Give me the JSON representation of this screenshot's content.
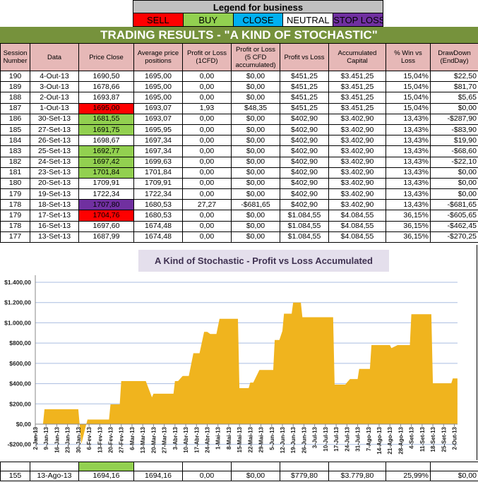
{
  "legend": {
    "title": "Legend for business",
    "items": [
      {
        "label": "SELL",
        "bg": "#ff0000",
        "color": "#000"
      },
      {
        "label": "BUY",
        "bg": "#92d050",
        "color": "#000"
      },
      {
        "label": "CLOSE",
        "bg": "#00b0f0",
        "color": "#000"
      },
      {
        "label": "NEUTRAL",
        "bg": "#ffffff",
        "color": "#000"
      },
      {
        "label": "STOP LOSS",
        "bg": "#7030a0",
        "color": "#000"
      }
    ]
  },
  "title": "TRADING RESULTS - \"A KIND OF STOCHASTIC\"",
  "table": {
    "headers": [
      "Session Number",
      "Data",
      "Price Close",
      "Average price positions",
      "Profit or Loss (1CFD)",
      "Profit or Loss (5 CFD accumulated)",
      "Profit vs Loss",
      "Accumulated Capital",
      "% Win vs Loss",
      "DrawDown (EndDay)"
    ],
    "rows": [
      {
        "cells": [
          "190",
          "4-Out-13",
          "1690,50",
          "1695,00",
          "0,00",
          "$0,00",
          "$451,25",
          "$3.451,25",
          "15,04%",
          "$22,50"
        ],
        "price_color": ""
      },
      {
        "cells": [
          "189",
          "3-Out-13",
          "1678,66",
          "1695,00",
          "0,00",
          "$0,00",
          "$451,25",
          "$3.451,25",
          "15,04%",
          "$81,70"
        ],
        "price_color": ""
      },
      {
        "cells": [
          "188",
          "2-Out-13",
          "1693,87",
          "1695,00",
          "0,00",
          "$0,00",
          "$451,25",
          "$3.451,25",
          "15,04%",
          "$5,65"
        ],
        "price_color": ""
      },
      {
        "cells": [
          "187",
          "1-Out-13",
          "1695,00",
          "1693,07",
          "1,93",
          "$48,35",
          "$451,25",
          "$3.451,25",
          "15,04%",
          "$0,00"
        ],
        "price_color": "#ff0000"
      },
      {
        "cells": [
          "186",
          "30-Set-13",
          "1681,55",
          "1693,07",
          "0,00",
          "$0,00",
          "$402,90",
          "$3.402,90",
          "13,43%",
          "-$287,90"
        ],
        "price_color": "#92d050"
      },
      {
        "cells": [
          "185",
          "27-Set-13",
          "1691,75",
          "1695,95",
          "0,00",
          "$0,00",
          "$402,90",
          "$3.402,90",
          "13,43%",
          "-$83,90"
        ],
        "price_color": "#92d050"
      },
      {
        "cells": [
          "184",
          "26-Set-13",
          "1698,67",
          "1697,34",
          "0,00",
          "$0,00",
          "$402,90",
          "$3.402,90",
          "13,43%",
          "$19,90"
        ],
        "price_color": ""
      },
      {
        "cells": [
          "183",
          "25-Set-13",
          "1692,77",
          "1697,34",
          "0,00",
          "$0,00",
          "$402,90",
          "$3.402,90",
          "13,43%",
          "-$68,60"
        ],
        "price_color": "#92d050"
      },
      {
        "cells": [
          "182",
          "24-Set-13",
          "1697,42",
          "1699,63",
          "0,00",
          "$0,00",
          "$402,90",
          "$3.402,90",
          "13,43%",
          "-$22,10"
        ],
        "price_color": "#92d050"
      },
      {
        "cells": [
          "181",
          "23-Set-13",
          "1701,84",
          "1701,84",
          "0,00",
          "$0,00",
          "$402,90",
          "$3.402,90",
          "13,43%",
          "$0,00"
        ],
        "price_color": "#92d050"
      },
      {
        "cells": [
          "180",
          "20-Set-13",
          "1709,91",
          "1709,91",
          "0,00",
          "$0,00",
          "$402,90",
          "$3.402,90",
          "13,43%",
          "$0,00"
        ],
        "price_color": ""
      },
      {
        "cells": [
          "179",
          "19-Set-13",
          "1722,34",
          "1722,34",
          "0,00",
          "$0,00",
          "$402,90",
          "$3.402,90",
          "13,43%",
          "$0,00"
        ],
        "price_color": ""
      },
      {
        "cells": [
          "178",
          "18-Set-13",
          "1707,80",
          "1680,53",
          "27,27",
          "-$681,65",
          "$402,90",
          "$3.402,90",
          "13,43%",
          "-$681,65"
        ],
        "price_color": "#7030a0"
      },
      {
        "cells": [
          "179",
          "17-Set-13",
          "1704,76",
          "1680,53",
          "0,00",
          "$0,00",
          "$1.084,55",
          "$4.084,55",
          "36,15%",
          "-$605,65"
        ],
        "price_color": "#ff0000"
      },
      {
        "cells": [
          "178",
          "16-Set-13",
          "1697,60",
          "1674,48",
          "0,00",
          "$0,00",
          "$1.084,55",
          "$4.084,55",
          "36,15%",
          "-$462,45"
        ],
        "price_color": ""
      },
      {
        "cells": [
          "177",
          "13-Set-13",
          "1687,99",
          "1674,48",
          "0,00",
          "$0,00",
          "$1.084,55",
          "$4.084,55",
          "36,15%",
          "-$270,25"
        ],
        "price_color": ""
      }
    ],
    "bottom_rows": [
      {
        "cells": [
          "",
          "",
          "",
          "",
          "",
          "",
          "",
          "",
          "",
          ""
        ],
        "price_color": "#92d050"
      },
      {
        "cells": [
          "155",
          "13-Ago-13",
          "1694,16",
          "1694,16",
          "0,00",
          "$0,00",
          "$779,80",
          "$3.779,80",
          "25,99%",
          "$0,00"
        ],
        "price_color": ""
      }
    ]
  },
  "chart_data": {
    "type": "area",
    "title": "A Kind of Stochastic - Profit vs Loss Accumulated",
    "color": "#f0b41e",
    "grid": true,
    "ylim": [
      -200,
      1400
    ],
    "yticks": [
      "$1.400,00",
      "$1.200,00",
      "$1.000,00",
      "$800,00",
      "$600,00",
      "$400,00",
      "$200,00",
      "$0,00",
      "-$200,00"
    ],
    "ytick_values": [
      1400,
      1200,
      1000,
      800,
      600,
      400,
      200,
      0,
      -200
    ],
    "xticks": [
      "2-Jan-13",
      "9-Jan-13",
      "16-Jan-13",
      "23-Jan-13",
      "30-Jan-13",
      "6-Fev-13",
      "13-Fev-13",
      "20-Fev-13",
      "27-Fev-13",
      "6-Mar-13",
      "13-Mar-13",
      "20-Mar-13",
      "27-Mar-13",
      "3-Abr-13",
      "10-Abr-13",
      "17-Abr-13",
      "24-Abr-13",
      "1-Mai-13",
      "8-Mai-13",
      "15-Mai-13",
      "22-Mai-13",
      "29-Mai-13",
      "5-Jun-13",
      "12-Jun-13",
      "19-Jun-13",
      "26-Jun-13",
      "3-Jul-13",
      "10-Jul-13",
      "17-Jul-13",
      "24-Jul-13",
      "31-Jul-13",
      "7-Ago-13",
      "14-Ago-13",
      "21-Ago-13",
      "28-Ago-13",
      "4-Set-13",
      "11-Set-13",
      "18-Set-13",
      "25-Set-13",
      "2-Out-13"
    ],
    "points": [
      [
        "2-Jan-13",
        0
      ],
      [
        "7-Jan-13",
        0
      ],
      [
        "8-Jan-13",
        147
      ],
      [
        "30-Jan-13",
        147
      ],
      [
        "1-Fev-13",
        -195
      ],
      [
        "5-Fev-13",
        45
      ],
      [
        "19-Fev-13",
        45
      ],
      [
        "20-Fev-13",
        195
      ],
      [
        "26-Fev-13",
        195
      ],
      [
        "27-Fev-13",
        425
      ],
      [
        "15-Mar-13",
        425
      ],
      [
        "19-Mar-13",
        265
      ],
      [
        "20-Mar-13",
        300
      ],
      [
        "2-Abr-13",
        300
      ],
      [
        "3-Abr-13",
        425
      ],
      [
        "5-Abr-13",
        425
      ],
      [
        "8-Abr-13",
        475
      ],
      [
        "12-Abr-13",
        475
      ],
      [
        "15-Abr-13",
        700
      ],
      [
        "19-Abr-13",
        700
      ],
      [
        "22-Abr-13",
        910
      ],
      [
        "24-Abr-13",
        910
      ],
      [
        "26-Abr-13",
        890
      ],
      [
        "30-Abr-13",
        890
      ],
      [
        "2-Mai-13",
        1040
      ],
      [
        "14-Mai-13",
        1040
      ],
      [
        "15-Mai-13",
        355
      ],
      [
        "21-Mai-13",
        355
      ],
      [
        "22-Mai-13",
        410
      ],
      [
        "24-Mai-13",
        410
      ],
      [
        "28-Mai-13",
        535
      ],
      [
        "6-Jun-13",
        535
      ],
      [
        "7-Jun-13",
        830
      ],
      [
        "10-Jun-13",
        830
      ],
      [
        "12-Jun-13",
        920
      ],
      [
        "13-Jun-13",
        1090
      ],
      [
        "18-Jun-13",
        1090
      ],
      [
        "19-Jun-13",
        1200
      ],
      [
        "24-Jun-13",
        1200
      ],
      [
        "25-Jun-13",
        1055
      ],
      [
        "15-Jul-13",
        1055
      ],
      [
        "16-Jul-13",
        390
      ],
      [
        "23-Jul-13",
        390
      ],
      [
        "24-Jul-13",
        410
      ],
      [
        "26-Jul-13",
        445
      ],
      [
        "31-Jul-13",
        445
      ],
      [
        "1-Ago-13",
        545
      ],
      [
        "8-Ago-13",
        545
      ],
      [
        "9-Ago-13",
        780
      ],
      [
        "21-Ago-13",
        780
      ],
      [
        "22-Ago-13",
        750
      ],
      [
        "26-Ago-13",
        780
      ],
      [
        "3-Set-13",
        780
      ],
      [
        "4-Set-13",
        1085
      ],
      [
        "17-Set-13",
        1085
      ],
      [
        "18-Set-13",
        403
      ],
      [
        "30-Set-13",
        403
      ],
      [
        "1-Out-13",
        451
      ],
      [
        "4-Out-13",
        451
      ]
    ]
  }
}
